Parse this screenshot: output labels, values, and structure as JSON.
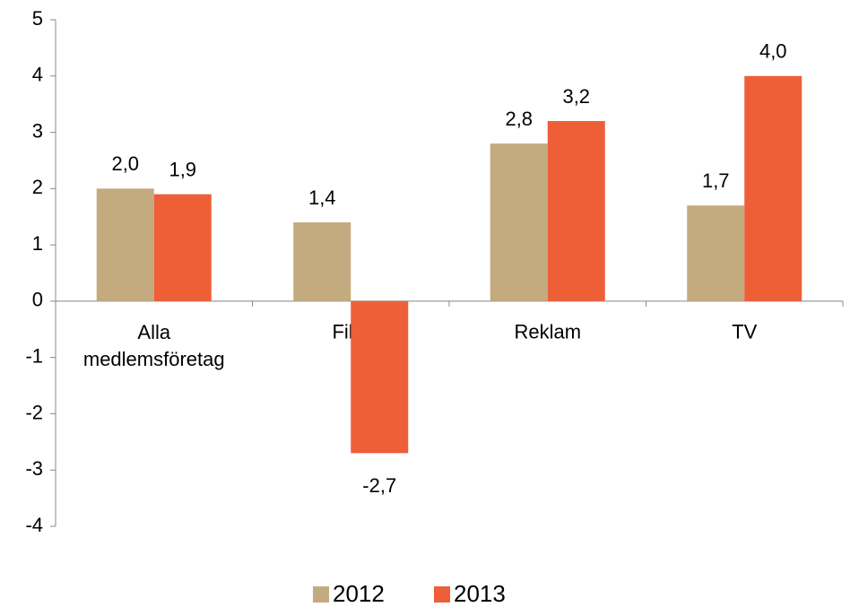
{
  "chart_data": {
    "type": "bar",
    "categories": [
      "Alla medlemsföretag",
      "Film",
      "Reklam",
      "TV"
    ],
    "series": [
      {
        "name": "2012",
        "color": "#c4aa7f",
        "values": [
          2.0,
          1.4,
          2.8,
          1.7
        ],
        "value_labels": [
          "2,0",
          "1,4",
          "2,8",
          "1,7"
        ]
      },
      {
        "name": "2013",
        "color": "#ee5f38",
        "values": [
          1.9,
          -2.7,
          3.2,
          4.0
        ],
        "value_labels": [
          "1,9",
          "-2,7",
          "3,2",
          "4,0"
        ]
      }
    ],
    "ylim": [
      -4,
      5
    ],
    "yticks": [
      -4,
      -3,
      -2,
      -1,
      0,
      1,
      2,
      3,
      4,
      5
    ],
    "legend": "bottom"
  }
}
